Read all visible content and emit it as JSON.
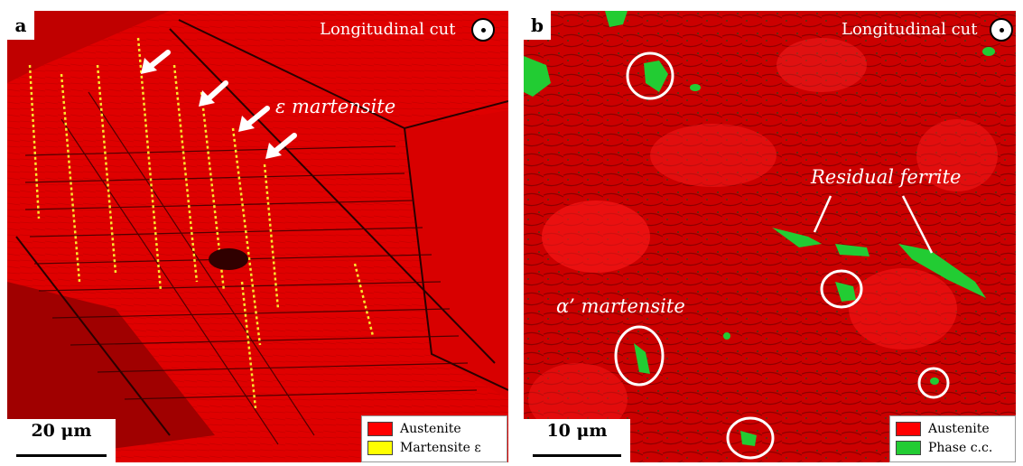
{
  "panel_a": {
    "label": "a",
    "cut_label": "Longitudinal cut",
    "annotation": "ε martensite",
    "scale_bar": "20 μm",
    "legend": [
      {
        "label": "Austenite",
        "color": "#ff0000"
      },
      {
        "label": "Martensite ε",
        "color": "#ffff00"
      }
    ]
  },
  "panel_b": {
    "label": "b",
    "cut_label": "Longitudinal cut",
    "annotation_ferrite": "Residual ferrite",
    "annotation_martensite": "α’ martensite",
    "scale_bar": "10 μm",
    "legend": [
      {
        "label": "Austenite",
        "color": "#ff0000"
      },
      {
        "label": "Phase c.c.",
        "color": "#22cc33"
      }
    ]
  }
}
